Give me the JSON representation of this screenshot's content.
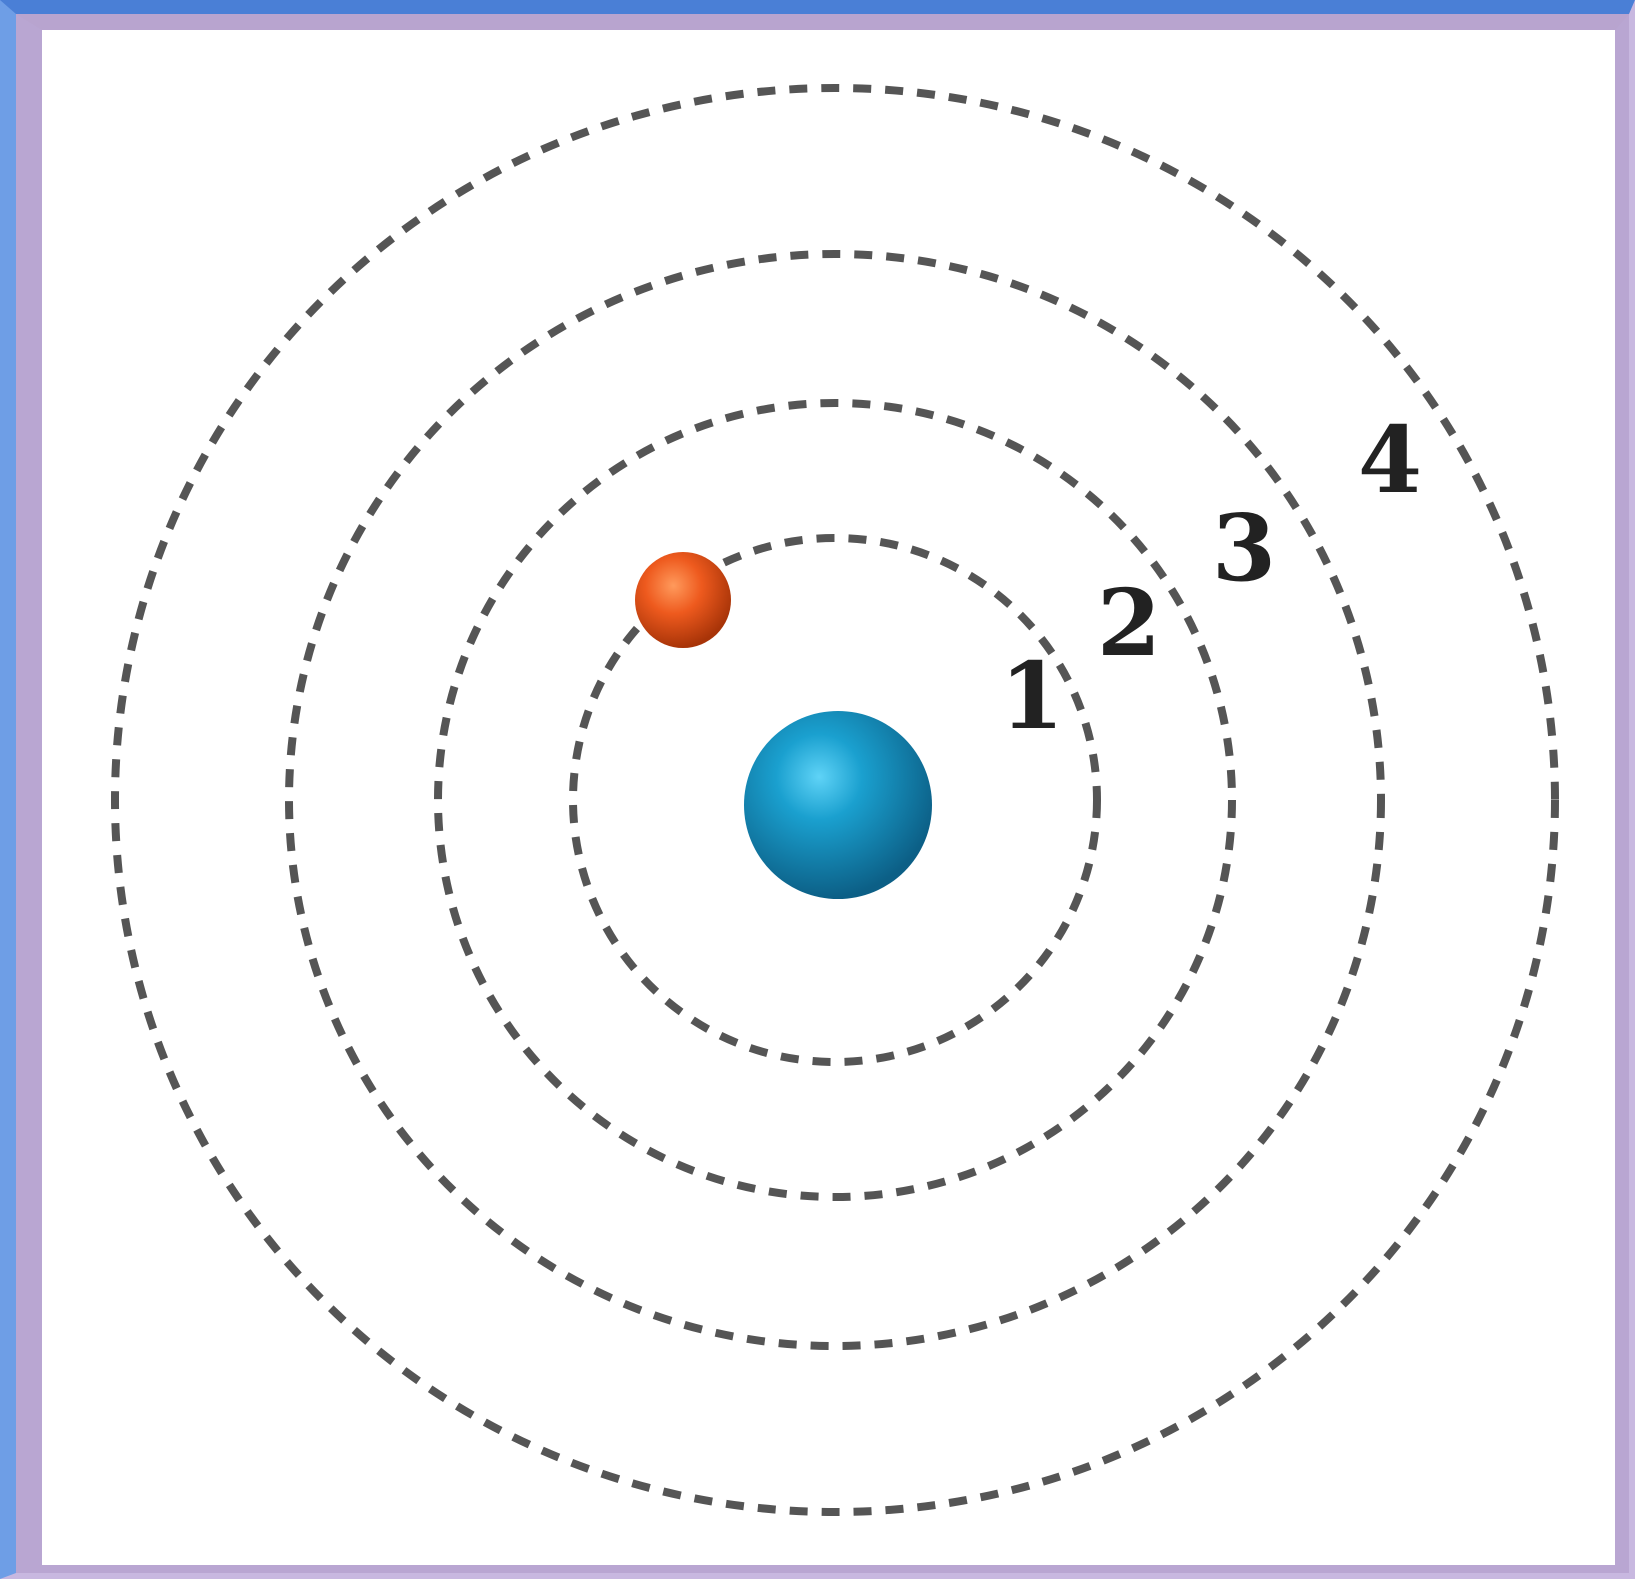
{
  "diagram": {
    "orbit_labels": [
      "1",
      "2",
      "3",
      "4"
    ],
    "colors": {
      "nucleus": "#1d8fc0",
      "electron": "#e8531a",
      "orbit": "#555555",
      "label": "#222222",
      "frame_outer": "#4a7fd6",
      "frame_inner": "#b9a6d2"
    }
  }
}
